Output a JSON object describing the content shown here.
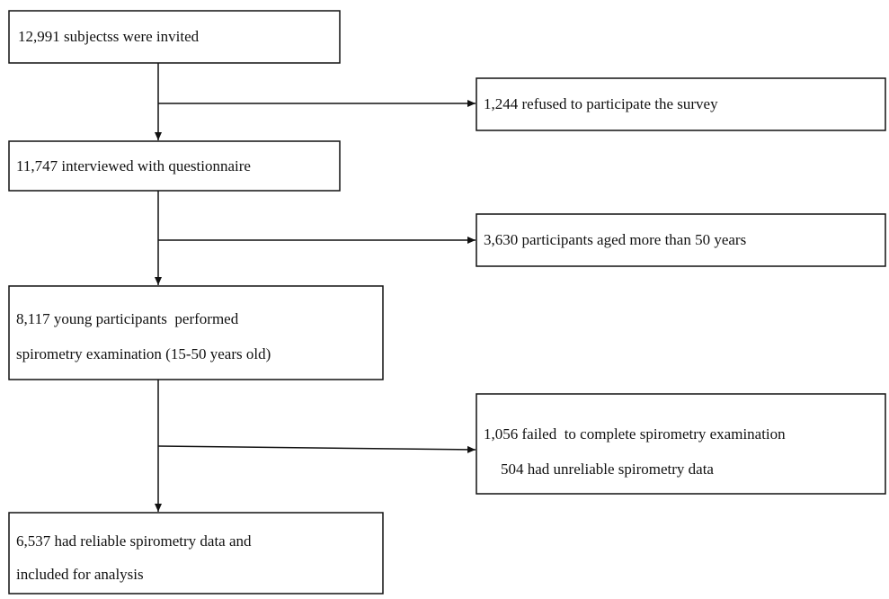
{
  "nodes": [
    {
      "lines": [
        "12,991 subjectss were invited"
      ]
    },
    {
      "lines": [
        "1,244 refused to participate the survey"
      ]
    },
    {
      "lines": [
        "11,747 interviewed with questionnaire"
      ]
    },
    {
      "lines": [
        "3,630 participants aged more than 50 years"
      ]
    },
    {
      "lines": [
        "8,117 young participants  performed",
        "spirometry examination (15-50 years old)"
      ]
    },
    {
      "lines": [
        "1,056 failed  to complete spirometry examination",
        "504 had unreliable spirometry data"
      ]
    },
    {
      "lines": [
        "6,537 had reliable spirometry data and",
        "included for analysis"
      ]
    }
  ]
}
